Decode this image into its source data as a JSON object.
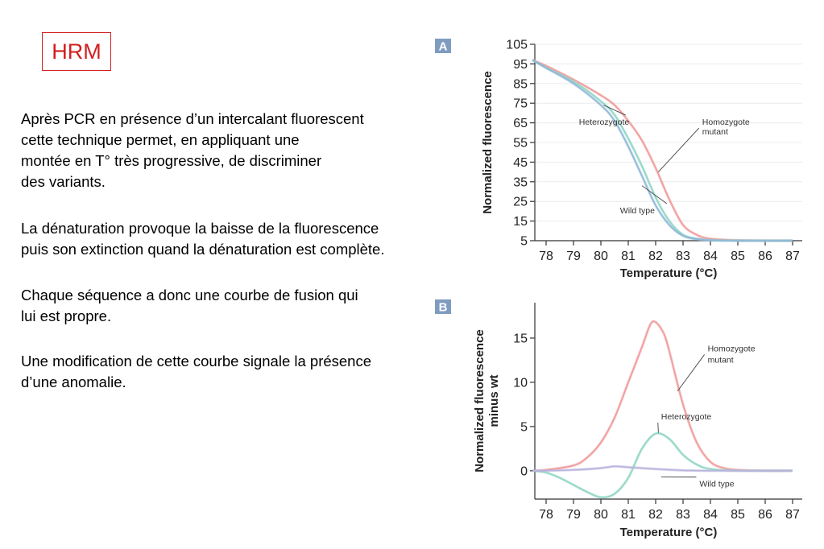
{
  "slide": {
    "title": "HRM",
    "paragraphs": [
      "Après PCR en présence d’un intercalant fluorescent\ncette technique permet, en appliquant une\nmontée en T° très progressive, de discriminer\ndes variants.",
      "La dénaturation provoque la baisse de la fluorescence\npuis son extinction quand la dénaturation est complète.",
      "Chaque séquence a donc une courbe de fusion qui\nlui est propre.",
      "Une modification de cette courbe signale la présence\nd’une anomalie."
    ]
  },
  "colors": {
    "title": "#d21f1f",
    "homozygote": "#f09a9a",
    "heterozygote": "#8fd6c4",
    "wildtype_a": "#8fb8d8",
    "wildtype_b": "#b7b3dd",
    "badge": "#7f9cc0"
  },
  "chart_data": [
    {
      "type": "line",
      "panel": "A",
      "xlabel": "Temperature (°C)",
      "ylabel": "Normalized fluorescence",
      "xlim": [
        77.5,
        87.2
      ],
      "ylim": [
        5,
        105
      ],
      "xticks": [
        78,
        79,
        80,
        81,
        82,
        83,
        84,
        85,
        86,
        87
      ],
      "yticks": [
        5,
        15,
        25,
        35,
        45,
        55,
        65,
        75,
        85,
        95,
        105
      ],
      "grid": true,
      "series": [
        {
          "name": "Homozygote mutant",
          "x": [
            77.5,
            78,
            79,
            80,
            80.5,
            81,
            81.5,
            82,
            82.5,
            83,
            83.5,
            84,
            85,
            86,
            87
          ],
          "y": [
            97,
            94,
            87,
            79,
            74,
            66,
            56,
            42,
            26,
            13,
            8,
            6,
            5.2,
            5,
            5
          ]
        },
        {
          "name": "Heterozygote",
          "x": [
            77.5,
            78,
            79,
            80,
            80.5,
            81,
            81.5,
            82,
            82.5,
            83,
            83.5,
            84,
            85,
            86,
            87
          ],
          "y": [
            97,
            93,
            86,
            76,
            69,
            57,
            43,
            27,
            15,
            8,
            6,
            5.3,
            5,
            5,
            5
          ]
        },
        {
          "name": "Wild type",
          "x": [
            77.5,
            78,
            79,
            80,
            80.5,
            81,
            81.5,
            82,
            82.5,
            83,
            83.5,
            84,
            85,
            86,
            87
          ],
          "y": [
            97,
            93,
            85,
            74,
            66,
            53,
            38,
            23,
            13,
            7.5,
            5.8,
            5.2,
            5,
            5,
            5
          ]
        }
      ],
      "annotations": [
        {
          "text": "Heterozygote",
          "x": 79.2,
          "y": 64,
          "point_x": 80.1,
          "point_y": 74
        },
        {
          "text": "Homozygote",
          "x": 83.7,
          "y": 64,
          "point_x": 82.1,
          "point_y": 40
        },
        {
          "text": "mutant",
          "x": 83.7,
          "y": 59
        },
        {
          "text": "Wild type",
          "x": 80.7,
          "y": 19,
          "point_x": 81.5,
          "point_y": 33
        }
      ]
    },
    {
      "type": "line",
      "panel": "B",
      "xlabel": "Temperature (°C)",
      "ylabel": "Normalized fluorescence minus wt",
      "ylabel_lines": [
        "Normalized fluorescence",
        "minus wt"
      ],
      "xlim": [
        77.5,
        87.2
      ],
      "ylim": [
        -3.2,
        19
      ],
      "xticks": [
        78,
        79,
        80,
        81,
        82,
        83,
        84,
        85,
        86,
        87
      ],
      "yticks": [
        0,
        5,
        10,
        15
      ],
      "grid": false,
      "series": [
        {
          "name": "Homozygote mutant",
          "x": [
            77.5,
            78,
            79,
            79.5,
            80,
            80.5,
            81,
            81.5,
            81.8,
            82,
            82.3,
            82.5,
            83,
            83.5,
            84,
            84.5,
            85,
            86,
            87
          ],
          "y": [
            0,
            0.1,
            0.6,
            1.5,
            3.2,
            6,
            10,
            14,
            16.5,
            16.8,
            15.5,
            13.5,
            7.5,
            3.2,
            1,
            0.3,
            0.1,
            0,
            0
          ]
        },
        {
          "name": "Heterozygote",
          "x": [
            77.5,
            78,
            78.5,
            79,
            79.5,
            80,
            80.5,
            81,
            81.5,
            82,
            82.5,
            83,
            83.5,
            84,
            85,
            86,
            87
          ],
          "y": [
            0,
            -0.2,
            -0.8,
            -1.6,
            -2.4,
            -3.0,
            -2.6,
            -0.8,
            2.5,
            4.2,
            3.6,
            1.8,
            0.7,
            0.2,
            0,
            0,
            0
          ]
        },
        {
          "name": "Wild type",
          "x": [
            77.5,
            78,
            79,
            80,
            80.5,
            81,
            82,
            83,
            84,
            85,
            86,
            87
          ],
          "y": [
            0,
            0,
            0.1,
            0.3,
            0.5,
            0.4,
            0.2,
            0.05,
            0,
            0,
            0,
            0
          ]
        }
      ],
      "annotations": [
        {
          "text": "Homozygote",
          "x": 83.9,
          "y": 13.5,
          "point_x": 82.8,
          "point_y": 9
        },
        {
          "text": "mutant",
          "x": 83.9,
          "y": 12.2
        },
        {
          "text": "Heterozygote",
          "x": 82.2,
          "y": 5.8,
          "point_x": 82.1,
          "point_y": 4.3
        },
        {
          "text": "Wild type",
          "x": 83.6,
          "y": -1.8,
          "point_x": 82.2,
          "point_y": -0.7
        }
      ]
    }
  ]
}
